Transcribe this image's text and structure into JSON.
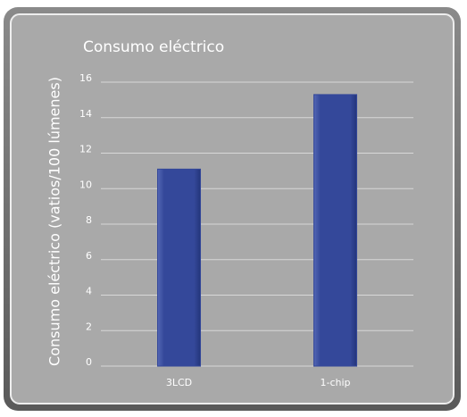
{
  "chart_data": {
    "type": "bar",
    "title": "Consumo eléctrico",
    "y_label": "Consumo eléctrico (vatios/100 lúmenes)",
    "categories": [
      "3LCD",
      "1-chip"
    ],
    "values": [
      11.1,
      15.3
    ],
    "color": "#34489a",
    "ylim": [
      0,
      16
    ],
    "yticks": [
      0,
      2,
      4,
      6,
      8,
      10,
      12,
      14,
      16
    ],
    "grid": true
  }
}
